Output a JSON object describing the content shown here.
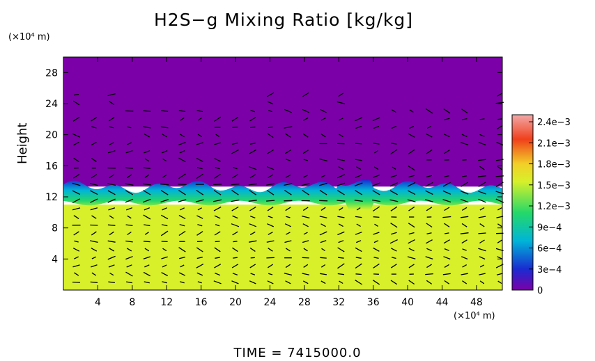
{
  "chart_data": {
    "type": "heatmap",
    "title": "H2S−g Mixing Ratio [kg/kg]",
    "ylabel": "Height",
    "y_unit": "(×10⁴ m)",
    "x_unit": "(×10⁴ m)",
    "xlim": [
      0,
      51
    ],
    "ylim": [
      0,
      30
    ],
    "x_ticks": [
      "4",
      "8",
      "12",
      "16",
      "20",
      "24",
      "28",
      "32",
      "36",
      "40",
      "44",
      "48"
    ],
    "y_ticks": [
      "4",
      "8",
      "12",
      "16",
      "20",
      "24",
      "28"
    ],
    "colorbar": {
      "min": 0,
      "max": 0.0025,
      "tick_labels": [
        "2.4e−3",
        "2.1e−3",
        "1.8e−3",
        "1.5e−3",
        "1.2e−3",
        "9e−4",
        "6e−4",
        "3e−4",
        "0"
      ],
      "tick_values": [
        0.0024,
        0.0021,
        0.0018,
        0.0015,
        0.0012,
        0.0009,
        0.0006,
        0.0003,
        0
      ]
    },
    "layers": [
      {
        "region": "above interface",
        "y_range": [
          13.5,
          30
        ],
        "value": 0
      },
      {
        "region": "mixing interface",
        "y_range": [
          11.5,
          13.5
        ],
        "value": 0.0012
      },
      {
        "region": "below interface",
        "y_range": [
          0,
          11
        ],
        "value": 0.0017
      }
    ],
    "colors": {
      "above": "#7b00a8",
      "interface_dark": "#1a2bd0",
      "interface_mid": "#00b4d8",
      "interface_light": "#24d86a",
      "below": "#d8f02a",
      "vectors": "#000000"
    },
    "time_label": "TIME  =  7415000.0"
  }
}
